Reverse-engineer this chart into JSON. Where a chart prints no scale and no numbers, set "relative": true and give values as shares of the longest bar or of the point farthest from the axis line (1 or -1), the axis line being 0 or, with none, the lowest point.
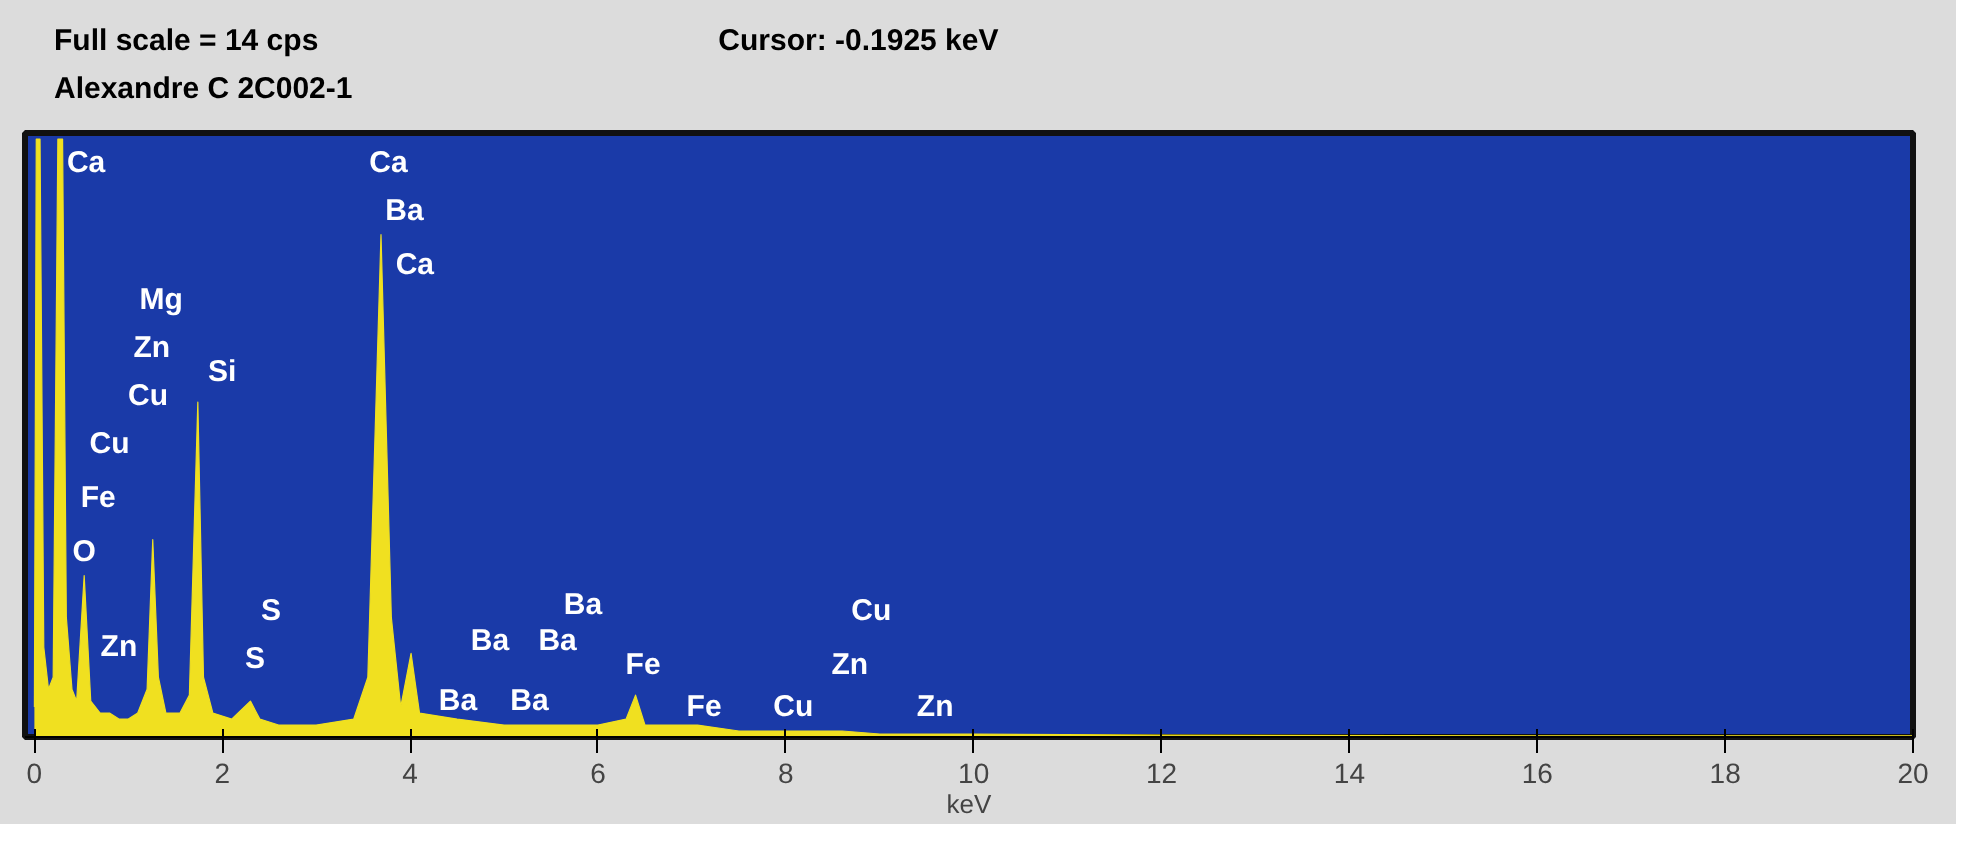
{
  "chart_data": {
    "type": "area",
    "title": "Full scale = 14  cps",
    "subtitle": "Alexandre C 2C002-1",
    "xlabel": "keV",
    "relative": true,
    "x": [
      0.0,
      0.02,
      0.06,
      0.1,
      0.15,
      0.2,
      0.25,
      0.3,
      0.34,
      0.4,
      0.45,
      0.53,
      0.6,
      0.7,
      0.8,
      0.9,
      1.0,
      1.1,
      1.2,
      1.26,
      1.32,
      1.4,
      1.55,
      1.65,
      1.74,
      1.8,
      1.9,
      2.1,
      2.3,
      2.4,
      2.6,
      3.0,
      3.4,
      3.55,
      3.69,
      3.8,
      3.9,
      4.01,
      4.1,
      4.5,
      5.0,
      5.5,
      6.0,
      6.3,
      6.4,
      6.5,
      7.06,
      7.5,
      8.0,
      8.6,
      9.0,
      10,
      12,
      16,
      20
    ],
    "series": [
      {
        "color": "#f0e020",
        "values": [
          0.05,
          1.0,
          1.0,
          0.15,
          0.08,
          0.1,
          1.0,
          1.0,
          0.2,
          0.08,
          0.06,
          0.27,
          0.06,
          0.04,
          0.04,
          0.03,
          0.03,
          0.04,
          0.08,
          0.33,
          0.1,
          0.04,
          0.04,
          0.07,
          0.56,
          0.1,
          0.04,
          0.03,
          0.06,
          0.03,
          0.02,
          0.02,
          0.03,
          0.1,
          0.84,
          0.2,
          0.05,
          0.14,
          0.04,
          0.03,
          0.02,
          0.02,
          0.02,
          0.03,
          0.07,
          0.02,
          0.02,
          0.01,
          0.01,
          0.01,
          0.005,
          0.005,
          0.003,
          0.002,
          0.002
        ]
      }
    ],
    "xlim": [
      -0.1,
      20
    ],
    "xticks": [
      0,
      2,
      4,
      6,
      8,
      10,
      12,
      14,
      16,
      18,
      20
    ],
    "annotations": [
      "Cursor:  -0.1925 keV",
      "Ca",
      "Mg",
      "Zn",
      "Cu",
      "Cu",
      "Fe",
      "O",
      "Zn",
      "Si",
      "S",
      "S",
      "Ca",
      "Ba",
      "Ca",
      "Ba",
      "Ba",
      "Ba",
      "Ba",
      "Ba",
      "Fe",
      "Fe",
      "Cu",
      "Zn",
      "Cu",
      "Zn"
    ]
  }
}
